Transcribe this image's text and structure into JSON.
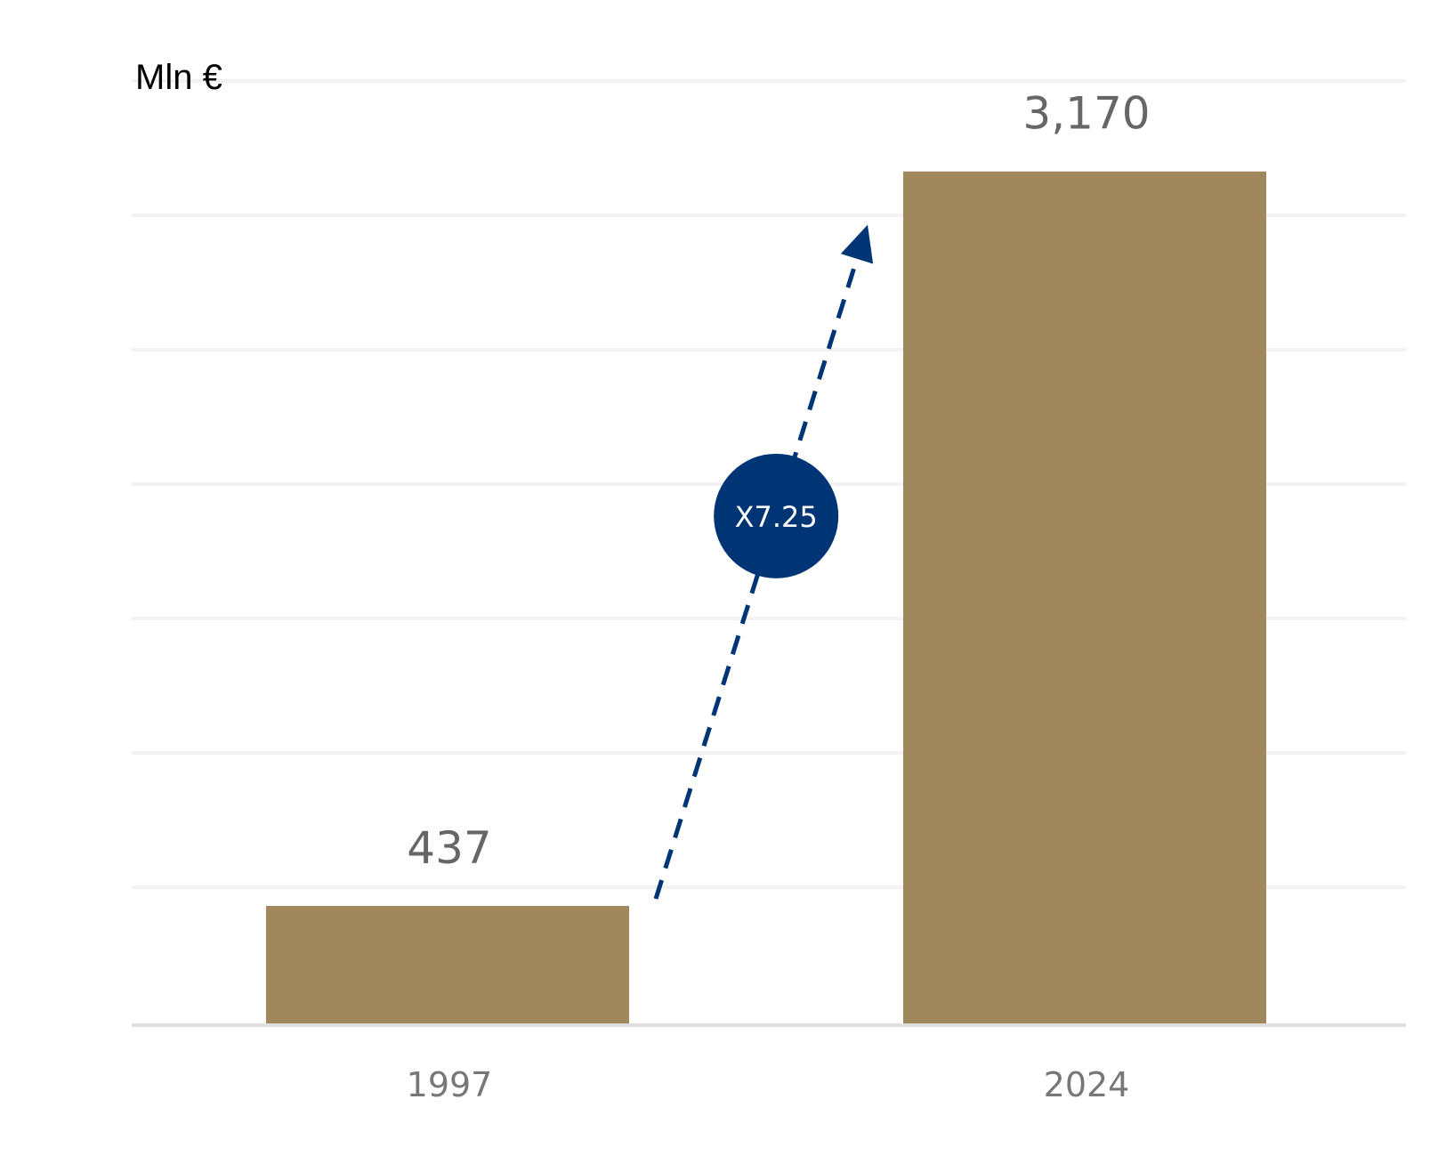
{
  "chart_data": {
    "type": "bar",
    "title": "",
    "unit_label": "Mln €",
    "xlabel": "",
    "ylabel": "",
    "categories": [
      "1997",
      "2024"
    ],
    "values": [
      437,
      3170
    ],
    "data_labels": [
      "437",
      "3,170"
    ],
    "ylim": [
      0,
      3500
    ],
    "gridlines": true,
    "legend": false,
    "annotation": {
      "text": "X7.25",
      "from_category": "1997",
      "to_category": "2024",
      "style": "dashed-arrow"
    },
    "colors": {
      "bar": "#A0875C",
      "data_label": "#666666",
      "tick_label": "#777777",
      "grid": "#F2F2F2",
      "axis": "#DDDDDD",
      "annotation": "#003575",
      "annotation_text": "#FFFFFF",
      "unit_label": "#000000"
    }
  }
}
